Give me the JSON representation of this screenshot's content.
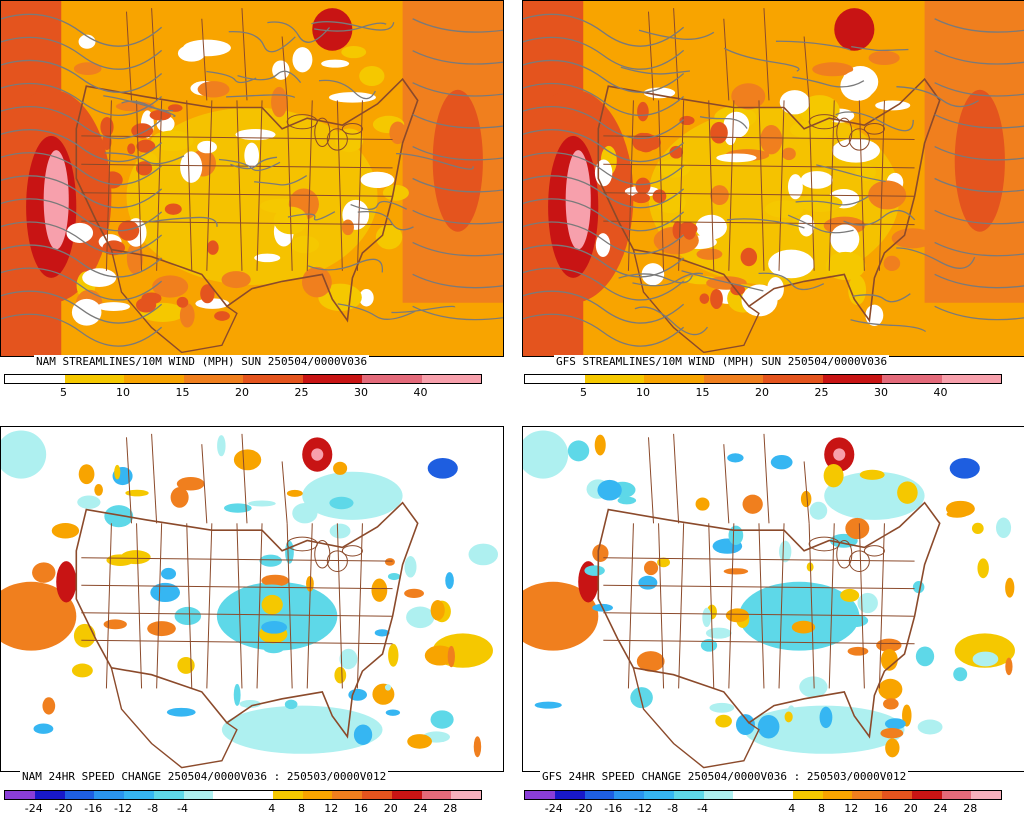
{
  "panels": [
    {
      "id": "nam-wind",
      "title": "NAM STREAMLINES/10M WIND (MPH)  SUN 250504/0000V036",
      "type": "wind",
      "colorbar": {
        "colors": [
          "#ffffff",
          "#ffffff",
          "#f5c800",
          "#f5c800",
          "#f8a400",
          "#f8a400",
          "#f07f1e",
          "#f07f1e",
          "#e4541e",
          "#e4541e",
          "#c81414",
          "#c81414",
          "#e36a7a",
          "#e36a7a",
          "#f7a0ac",
          "#f7a0ac"
        ],
        "labels": [
          "5",
          "10",
          "15",
          "20",
          "25",
          "30",
          "40"
        ]
      }
    },
    {
      "id": "gfs-wind",
      "title": "GFS STREAMLINES/10M WIND (MPH)  SUN 250504/0000V036",
      "type": "wind",
      "colorbar": {
        "colors": [
          "#ffffff",
          "#ffffff",
          "#f5c800",
          "#f5c800",
          "#f8a400",
          "#f8a400",
          "#f07f1e",
          "#f07f1e",
          "#e4541e",
          "#e4541e",
          "#c81414",
          "#c81414",
          "#e36a7a",
          "#e36a7a",
          "#f7a0ac",
          "#f7a0ac"
        ],
        "labels": [
          "5",
          "10",
          "15",
          "20",
          "25",
          "30",
          "40"
        ]
      }
    },
    {
      "id": "nam-change",
      "title": "NAM 24HR SPEED CHANGE 250504/0000V036 : 250503/0000V012",
      "type": "change",
      "colorbar": {
        "colors": [
          "#8a3ed8",
          "#1818c8",
          "#1e5ee0",
          "#2a94ee",
          "#36b6f2",
          "#5ed8e8",
          "#aef0f0",
          "#ffffff",
          "#ffffff",
          "#f5c800",
          "#f8a400",
          "#f07f1e",
          "#e4541e",
          "#c81414",
          "#e36a7a",
          "#f7b0bc"
        ],
        "labels": [
          "-24",
          "-20",
          "-16",
          "-12",
          "-8",
          "-4",
          "4",
          "8",
          "12",
          "16",
          "20",
          "24",
          "28"
        ]
      }
    },
    {
      "id": "gfs-change",
      "title": "GFS 24HR SPEED CHANGE 250504/0000V036 : 250503/0000V012",
      "type": "change",
      "colorbar": {
        "colors": [
          "#8a3ed8",
          "#1818c8",
          "#1e5ee0",
          "#2a94ee",
          "#36b6f2",
          "#5ed8e8",
          "#aef0f0",
          "#ffffff",
          "#ffffff",
          "#f5c800",
          "#f8a400",
          "#f07f1e",
          "#e4541e",
          "#c81414",
          "#e36a7a",
          "#f7b0bc"
        ],
        "labels": [
          "-24",
          "-20",
          "-16",
          "-12",
          "-8",
          "-4",
          "4",
          "8",
          "12",
          "16",
          "20",
          "24",
          "28"
        ]
      }
    }
  ],
  "colors": {
    "border": "#8b4a2b",
    "streamline": "#7a7a7a",
    "white": "#ffffff",
    "yellow": "#f5c800",
    "light_orange": "#f8a400",
    "orange": "#f07f1e",
    "dark_orange": "#e4541e",
    "red": "#c81414",
    "pink": "#f7a0ac",
    "light_cyan": "#aef0f0",
    "cyan": "#5ed8e8",
    "sky": "#36b6f2",
    "blue": "#1e5ee0"
  }
}
